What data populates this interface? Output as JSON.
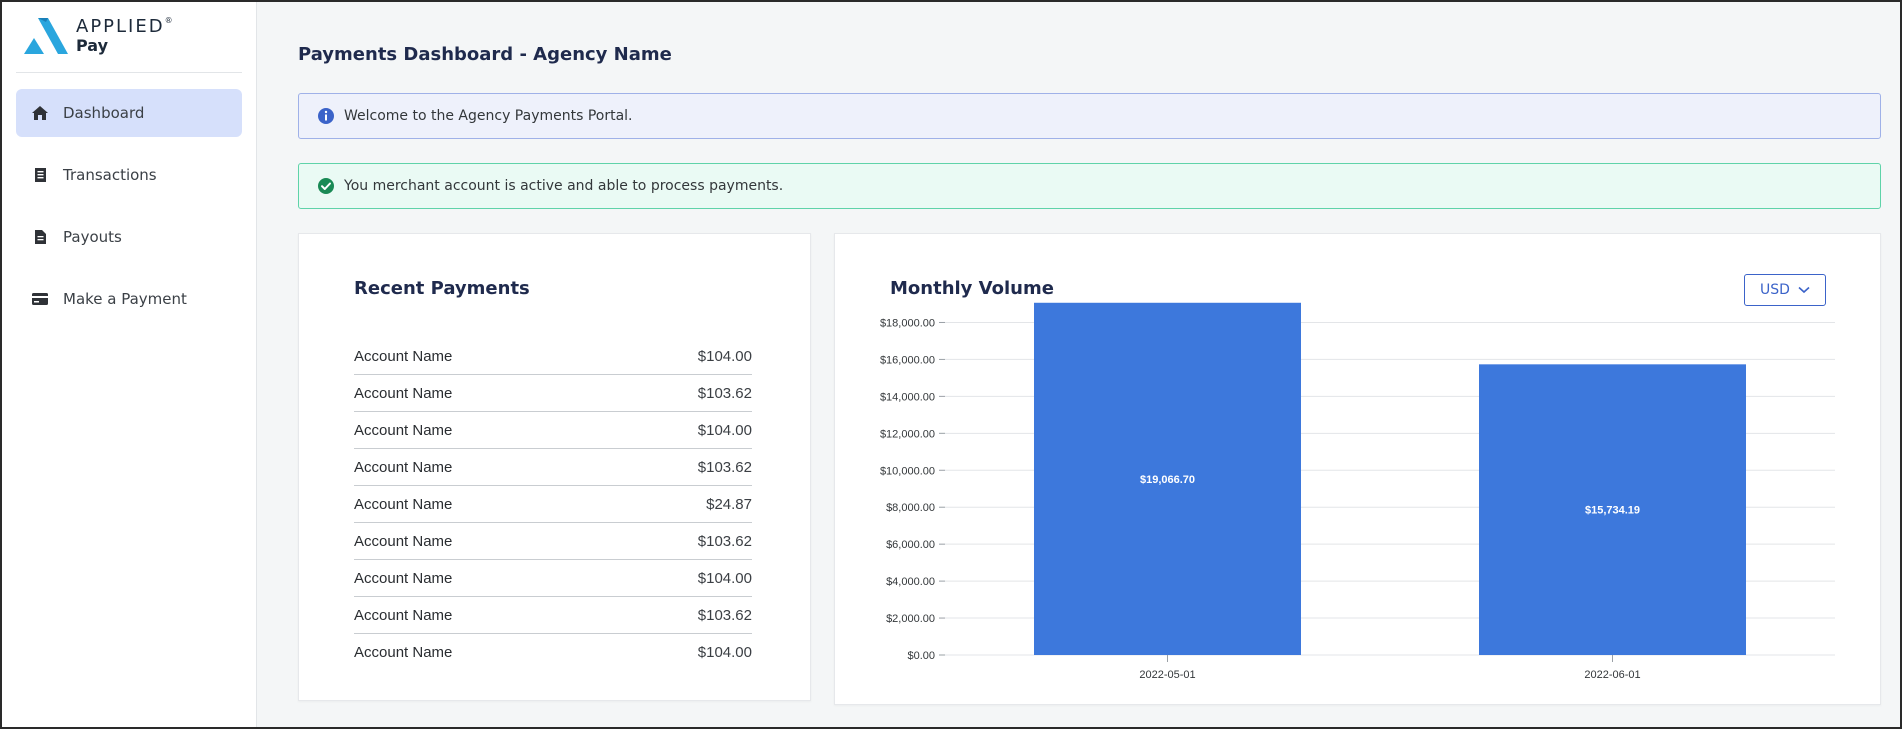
{
  "sidebar": {
    "logo": {
      "brand": "APPLIED",
      "product": "Pay",
      "trademark": "®"
    },
    "items": [
      {
        "label": "Dashboard",
        "icon": "home-icon",
        "active": true
      },
      {
        "label": "Transactions",
        "icon": "receipt-icon",
        "active": false
      },
      {
        "label": "Payouts",
        "icon": "document-icon",
        "active": false
      },
      {
        "label": "Make a Payment",
        "icon": "credit-card-icon",
        "active": false
      }
    ]
  },
  "header": {
    "title": "Payments Dashboard - Agency Name"
  },
  "banners": {
    "info": {
      "text": "Welcome to the Agency Payments Portal.",
      "icon": "info-icon"
    },
    "success": {
      "text": "You merchant account is active and able to process payments.",
      "icon": "check-circle-icon"
    }
  },
  "recent_payments": {
    "title": "Recent Payments",
    "rows": [
      {
        "name": "Account Name",
        "amount": "$104.00"
      },
      {
        "name": "Account Name",
        "amount": "$103.62"
      },
      {
        "name": "Account Name",
        "amount": "$104.00"
      },
      {
        "name": "Account Name",
        "amount": "$103.62"
      },
      {
        "name": "Account Name",
        "amount": "$24.87"
      },
      {
        "name": "Account Name",
        "amount": "$103.62"
      },
      {
        "name": "Account Name",
        "amount": "$104.00"
      },
      {
        "name": "Account Name",
        "amount": "$103.62"
      },
      {
        "name": "Account Name",
        "amount": "$104.00"
      }
    ]
  },
  "monthly_volume": {
    "title": "Monthly Volume",
    "currency": "USD"
  },
  "colors": {
    "accent": "#3d78dc",
    "nav_active_bg": "#d6e0fb",
    "title": "#1f2a4d",
    "success": "#1a8a55",
    "info": "#3b63c9"
  },
  "chart_data": {
    "type": "bar",
    "title": "Monthly Volume",
    "categories": [
      "2022-05-01",
      "2022-06-01"
    ],
    "values": [
      19066.7,
      15734.19
    ],
    "data_labels": [
      "$19,066.70",
      "$15,734.19"
    ],
    "yticks": [
      "$0.00",
      "$2,000.00",
      "$4,000.00",
      "$6,000.00",
      "$8,000.00",
      "$10,000.00",
      "$12,000.00",
      "$14,000.00",
      "$16,000.00",
      "$18,000.00"
    ],
    "ylim": [
      0,
      19000
    ],
    "grid": true,
    "xlabel": "",
    "ylabel": "",
    "color": "#3d78dc"
  }
}
